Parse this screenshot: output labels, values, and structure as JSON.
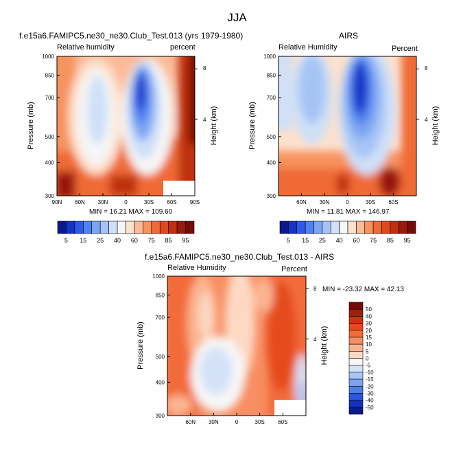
{
  "page": {
    "title": "JJA",
    "colors": {
      "background": "#ffffff",
      "frame": "#000000"
    }
  },
  "panels": [
    {
      "title": "f.e15a6.FAMIPC5.ne30_ne30.Club_Test.013 (yrs 1979-1980)",
      "left_label": "Relative humidity",
      "right_label": "percent",
      "minmax": "MIN = 16.21  MAX = 109.60",
      "ylabel": "Pressure (mb)",
      "y2label": "Height (km)"
    },
    {
      "title": "AIRS",
      "left_label": "Relative Humidity",
      "right_label": "Percent",
      "minmax": "MIN = 11.81  MAX = 146.97",
      "ylabel": "Pressure (mb)",
      "y2label": "Height (km)"
    },
    {
      "title": "f.e15a6.FAMIPC5.ne30_ne30.Club_Test.013 - AIRS",
      "left_label": "Relative Humidity",
      "right_label": "Percent",
      "minmax": "MIN = -23.32  MAX =  42.13",
      "ylabel": "Pressure (mb)",
      "y2label": "Height (km)"
    }
  ],
  "colorbar_rh": {
    "labels": [
      "5",
      "15",
      "25",
      "40",
      "60",
      "75",
      "85",
      "95"
    ],
    "colors": [
      "#0a1a8c",
      "#1434c8",
      "#2c5ae6",
      "#4f82f0",
      "#7ba5f3",
      "#a5c4f5",
      "#cfe0f8",
      "#f6f6f6",
      "#fde1cc",
      "#fbbb98",
      "#f7935f",
      "#ef6a36",
      "#dd4b1c",
      "#bf300f",
      "#99190a",
      "#740c05"
    ]
  },
  "colorbar_diff": {
    "labels": [
      "50",
      "40",
      "30",
      "20",
      "15",
      "10",
      "5",
      "0",
      "-5",
      "-10",
      "-15",
      "-20",
      "-30",
      "-40",
      "-50"
    ],
    "colors": [
      "#740c05",
      "#a51d0c",
      "#cc330f",
      "#e54b1c",
      "#f26c3a",
      "#f88e62",
      "#fbb490",
      "#fdd9c4",
      "#f7f7f7",
      "#d4e2f8",
      "#a9c4f3",
      "#7fa4ef",
      "#4f7fe6",
      "#2a57dd",
      "#1232c2",
      "#0a1a8c"
    ]
  },
  "chart_data": [
    {
      "type": "heatmap",
      "title": "f.e15a6.FAMIPC5.ne30_ne30.Club_Test.013 (yrs 1979-1980)",
      "variable": "Relative humidity",
      "units": "percent",
      "xlabel": "",
      "ylabel": "Pressure (mb)",
      "y2label": "Height (km)",
      "x_ticks": [
        "90N",
        "60N",
        "30N",
        "0",
        "30S",
        "60S",
        "90S"
      ],
      "x_tick_values": [
        90,
        60,
        30,
        0,
        -30,
        -60,
        -90
      ],
      "xlim": [
        90,
        -90
      ],
      "y_ticks": [
        300,
        400,
        500,
        700,
        850,
        1000
      ],
      "ylim": [
        1000,
        300
      ],
      "y_scale": "log",
      "y2_ticks": [
        8,
        4
      ],
      "min": 16.21,
      "max": 109.6,
      "contour_levels": [
        5,
        10,
        15,
        20,
        25,
        30,
        40,
        50,
        60,
        70,
        75,
        80,
        85,
        90,
        95
      ],
      "features": {
        "moist_maximum_lat": 90,
        "dry_minimum_lat": -15,
        "dry_minimum_value": 15,
        "surface_max_value": 95
      }
    },
    {
      "type": "heatmap",
      "title": "AIRS",
      "variable": "Relative Humidity",
      "units": "Percent",
      "xlabel": "",
      "ylabel": "Pressure (mb)",
      "y2label": "Height (km)",
      "x_ticks": [
        "60N",
        "30N",
        "0",
        "30S",
        "60S"
      ],
      "x_tick_values": [
        60,
        30,
        0,
        -30,
        -60
      ],
      "xlim": [
        90,
        -90
      ],
      "y_ticks": [
        300,
        400,
        500,
        700,
        850,
        1000
      ],
      "ylim": [
        1000,
        300
      ],
      "y_scale": "log",
      "y2_ticks": [
        8,
        4
      ],
      "min": 11.81,
      "max": 146.97,
      "contour_levels": [
        5,
        10,
        15,
        20,
        25,
        30,
        40,
        50,
        60,
        70,
        75,
        80,
        85,
        90,
        95
      ],
      "features": {
        "moist_maximum_lat": -60,
        "dry_minimum_lat": -15,
        "dry_minimum_value": 10,
        "surface_max_value": 95
      }
    },
    {
      "type": "heatmap",
      "title": "f.e15a6.FAMIPC5.ne30_ne30.Club_Test.013 - AIRS",
      "variable": "Relative Humidity",
      "units": "Percent",
      "xlabel": "",
      "ylabel": "Pressure (mb)",
      "y2label": "Height (km)",
      "x_ticks": [
        "60N",
        "30N",
        "0",
        "30S",
        "60S"
      ],
      "x_tick_values": [
        60,
        30,
        0,
        -30,
        -60
      ],
      "xlim": [
        90,
        -90
      ],
      "y_ticks": [
        300,
        400,
        500,
        700,
        850,
        1000
      ],
      "ylim": [
        1000,
        300
      ],
      "y_scale": "log",
      "y2_ticks": [
        8,
        4
      ],
      "min": -23.32,
      "max": 42.13,
      "contour_levels": [
        -50,
        -40,
        -30,
        -20,
        -15,
        -10,
        -5,
        0,
        5,
        10,
        15,
        20,
        30,
        40,
        50
      ],
      "features": {
        "mostly_positive": true,
        "negative_region_lat": 10,
        "negative_region_pressure": 850
      }
    }
  ]
}
